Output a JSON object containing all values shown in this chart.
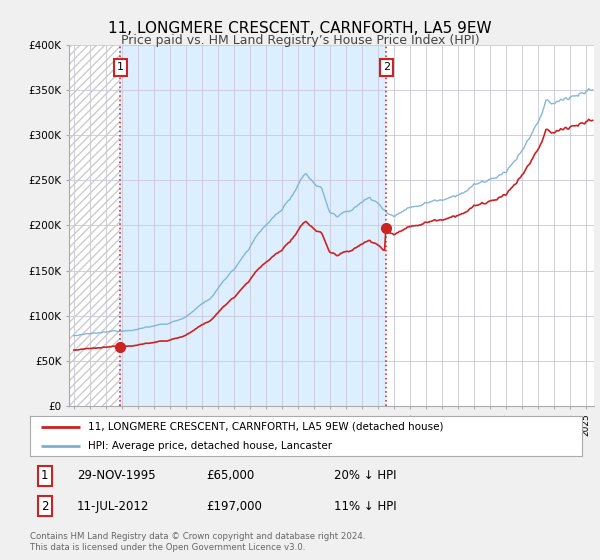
{
  "title": "11, LONGMERE CRESCENT, CARNFORTH, LA5 9EW",
  "subtitle": "Price paid vs. HM Land Registry’s House Price Index (HPI)",
  "ylim": [
    0,
    400000
  ],
  "yticks": [
    0,
    50000,
    100000,
    150000,
    200000,
    250000,
    300000,
    350000,
    400000
  ],
  "ytick_labels": [
    "£0",
    "£50K",
    "£100K",
    "£150K",
    "£200K",
    "£250K",
    "£300K",
    "£350K",
    "£400K"
  ],
  "xlim_start": 1992.7,
  "xlim_end": 2025.5,
  "hpi_color": "#7bafd4",
  "price_color": "#cc2222",
  "transaction1_date": 1995.91,
  "transaction1_price": 65000,
  "transaction2_date": 2012.53,
  "transaction2_price": 197000,
  "transaction1_text": "29-NOV-1995",
  "transaction1_amount": "£65,000",
  "transaction1_hpi": "20% ↓ HPI",
  "transaction2_text": "11-JUL-2012",
  "transaction2_amount": "£197,000",
  "transaction2_hpi": "11% ↓ HPI",
  "legend_label1": "11, LONGMERE CRESCENT, CARNFORTH, LA5 9EW (detached house)",
  "legend_label2": "HPI: Average price, detached house, Lancaster",
  "footer1": "Contains HM Land Registry data © Crown copyright and database right 2024.",
  "footer2": "This data is licensed under the Open Government Licence v3.0.",
  "bg_color": "#f0f0f0",
  "plot_bg_color": "#ffffff",
  "hatch_color": "#cccccc",
  "region_color": "#ddeeff",
  "grid_color": "#c8c8d8",
  "title_fontsize": 11,
  "subtitle_fontsize": 9
}
